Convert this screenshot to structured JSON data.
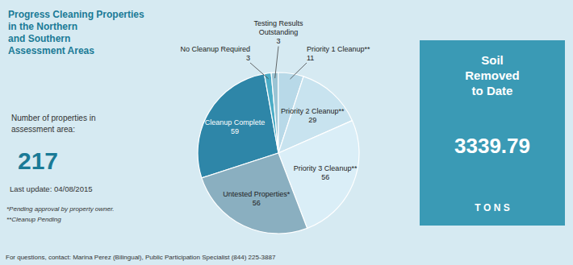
{
  "chart_data": {
    "type": "pie",
    "title": "Progress Cleaning Properties\nin the Northern\nand Southern\nAssessment Areas",
    "categories": [
      "Cleanup Complete",
      "No Cleanup Required",
      "Testing Results\nOutstanding",
      "Priority 1 Cleanup**",
      "Priority 2 Cleanup**",
      "Priority 3 Cleanup**",
      "Untested Properties*"
    ],
    "values": [
      59,
      3,
      3,
      11,
      29,
      56,
      56
    ],
    "colors": [
      "#2e86a8",
      "#4bacc6",
      "#9ac4d4",
      "#b8d9e8",
      "#c8e3ef",
      "#daeef7",
      "#8aafc0"
    ],
    "data_labels": true,
    "annotations": [
      "Number of properties in\nassessment area:",
      "217",
      "Last update: 04/08/2015",
      "*Pending approval by property owner.",
      "**Cleanup Pending",
      "Soil\nRemoved\nto Date",
      "3339.79",
      "T O N S",
      "For questions, contact: Marina Perez (Bilingual), Public Participation Specialist (844) 225-3887"
    ]
  }
}
